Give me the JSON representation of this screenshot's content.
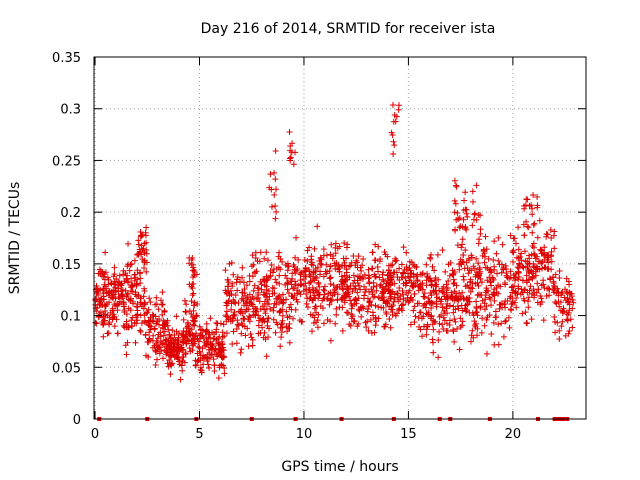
{
  "chart_data": {
    "type": "scatter",
    "title": "Day 216 of 2014, SRMTID for receiver ista",
    "xlabel": "GPS time / hours",
    "ylabel": "SRMTID / TECUs",
    "xlim": [
      -0.05,
      23.5
    ],
    "ylim": [
      0,
      0.35
    ],
    "x_ticks": [
      0,
      5,
      10,
      15,
      20
    ],
    "x_tick_labels": [
      "0",
      "5",
      "10",
      "15",
      "20"
    ],
    "y_ticks": [
      0,
      0.05,
      0.1,
      0.15,
      0.2,
      0.25,
      0.3,
      0.35
    ],
    "y_tick_labels": [
      "0",
      "0.05",
      "0.1",
      "0.15",
      "0.2",
      "0.25",
      "0.3",
      "0.35"
    ],
    "grid": true,
    "marker": "plus",
    "color": "#dd0000",
    "zero_markers_x": [
      0.2,
      2.5,
      4.85,
      7.5,
      9.6,
      11.8,
      14.3,
      16.5,
      17.0,
      18.9,
      21.2,
      22.0,
      22.1,
      22.2,
      22.3,
      22.4,
      22.6
    ],
    "series": [
      {
        "name": "SRMTID",
        "segments": [
          {
            "x0": 0.0,
            "x1": 0.6,
            "mean": 0.115,
            "spread": 0.025,
            "n": 70
          },
          {
            "x0": 0.6,
            "x1": 1.4,
            "mean": 0.12,
            "spread": 0.028,
            "n": 80
          },
          {
            "x0": 1.4,
            "x1": 2.4,
            "mean": 0.12,
            "spread": 0.035,
            "n": 100
          },
          {
            "x0": 2.0,
            "x1": 2.5,
            "mean": 0.17,
            "spread": 0.02,
            "n": 30
          },
          {
            "x0": 2.4,
            "x1": 3.4,
            "mean": 0.085,
            "spread": 0.025,
            "n": 90
          },
          {
            "x0": 3.4,
            "x1": 4.3,
            "mean": 0.068,
            "spread": 0.018,
            "n": 110
          },
          {
            "x0": 4.3,
            "x1": 4.9,
            "mean": 0.085,
            "spread": 0.028,
            "n": 70
          },
          {
            "x0": 4.5,
            "x1": 4.9,
            "mean": 0.14,
            "spread": 0.015,
            "n": 20
          },
          {
            "x0": 4.9,
            "x1": 6.2,
            "mean": 0.07,
            "spread": 0.02,
            "n": 130
          },
          {
            "x0": 6.2,
            "x1": 7.5,
            "mean": 0.11,
            "spread": 0.03,
            "n": 110
          },
          {
            "x0": 7.5,
            "x1": 9.5,
            "mean": 0.12,
            "spread": 0.035,
            "n": 180
          },
          {
            "x0": 8.3,
            "x1": 8.7,
            "mean": 0.22,
            "spread": 0.03,
            "n": 12
          },
          {
            "x0": 9.3,
            "x1": 9.6,
            "mean": 0.25,
            "spread": 0.03,
            "n": 10
          },
          {
            "x0": 9.5,
            "x1": 12.0,
            "mean": 0.13,
            "spread": 0.035,
            "n": 220
          },
          {
            "x0": 12.0,
            "x1": 14.2,
            "mean": 0.125,
            "spread": 0.035,
            "n": 200
          },
          {
            "x0": 14.1,
            "x1": 14.6,
            "mean": 0.28,
            "spread": 0.025,
            "n": 12
          },
          {
            "x0": 14.0,
            "x1": 15.5,
            "mean": 0.13,
            "spread": 0.03,
            "n": 120
          },
          {
            "x0": 15.5,
            "x1": 17.5,
            "mean": 0.115,
            "spread": 0.035,
            "n": 180
          },
          {
            "x0": 17.2,
            "x1": 18.5,
            "mean": 0.2,
            "spread": 0.03,
            "n": 40
          },
          {
            "x0": 17.5,
            "x1": 20.0,
            "mean": 0.125,
            "spread": 0.04,
            "n": 220
          },
          {
            "x0": 20.0,
            "x1": 22.0,
            "mean": 0.14,
            "spread": 0.035,
            "n": 180
          },
          {
            "x0": 20.5,
            "x1": 21.3,
            "mean": 0.2,
            "spread": 0.02,
            "n": 20
          },
          {
            "x0": 22.0,
            "x1": 22.9,
            "mean": 0.11,
            "spread": 0.025,
            "n": 60
          }
        ]
      }
    ]
  }
}
